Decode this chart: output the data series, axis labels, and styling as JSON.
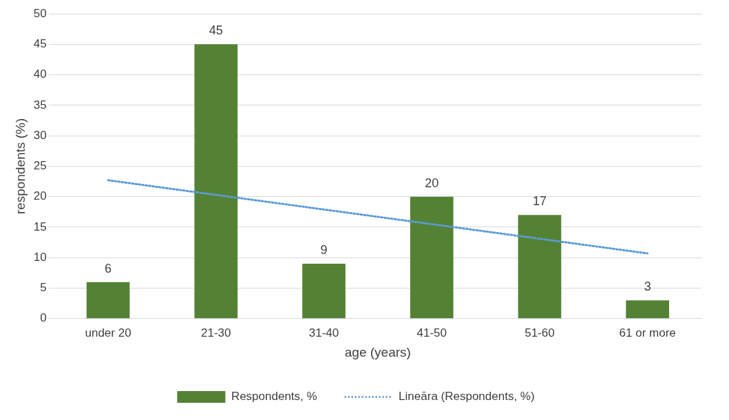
{
  "chart_data": {
    "type": "bar",
    "xlabel": "age (years)",
    "ylabel": "respondents (%)",
    "categories": [
      "under 20",
      "21-30",
      "31-40",
      "41-50",
      "51-60",
      "61 or more"
    ],
    "series": [
      {
        "name": "Respondents, %",
        "color": "#548235",
        "values": [
          6,
          45,
          9,
          20,
          17,
          3
        ],
        "value_labels": [
          "6",
          "45",
          "9",
          "20",
          "17",
          "3"
        ]
      },
      {
        "name": "Lineāra (Respondents, %)",
        "type": "line",
        "color": "#5b9bd5",
        "line_style": "dotted",
        "marker": "none",
        "values": [
          22.7,
          20.3,
          17.9,
          15.5,
          13.1,
          10.7
        ]
      }
    ],
    "ylim": [
      0,
      50
    ],
    "yticks": [
      0,
      5,
      10,
      15,
      20,
      25,
      30,
      35,
      40,
      45,
      50
    ],
    "grid": "y",
    "legend": "bottom"
  }
}
